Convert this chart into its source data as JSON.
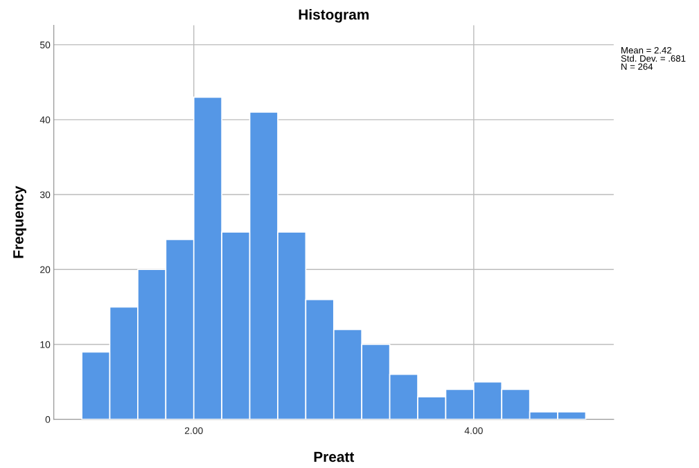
{
  "chart_data": {
    "type": "histogram",
    "title": "Histogram",
    "xlabel": "Preatt",
    "ylabel": "Frequency",
    "bins": [
      1.2,
      1.4,
      1.6,
      1.8,
      2.0,
      2.2,
      2.4,
      2.6,
      2.8,
      3.0,
      3.2,
      3.4,
      3.6,
      3.8,
      4.0,
      4.2,
      4.4,
      4.6,
      4.8
    ],
    "values": [
      9,
      15,
      20,
      24,
      43,
      25,
      41,
      25,
      16,
      12,
      10,
      6,
      3,
      4,
      5,
      4,
      1,
      1
    ],
    "color": "#5597e6",
    "xlim": [
      1.0,
      5.0
    ],
    "xticks": [
      {
        "value": 2,
        "label": "2.00"
      },
      {
        "value": 4,
        "label": "4.00"
      }
    ],
    "ylim": [
      0,
      52.6
    ],
    "yticks": [
      0,
      10,
      20,
      30,
      40,
      50
    ],
    "grid": true,
    "annotations": [
      "Mean = 2.42\nStd. Dev. = .681\nN = 264"
    ]
  }
}
